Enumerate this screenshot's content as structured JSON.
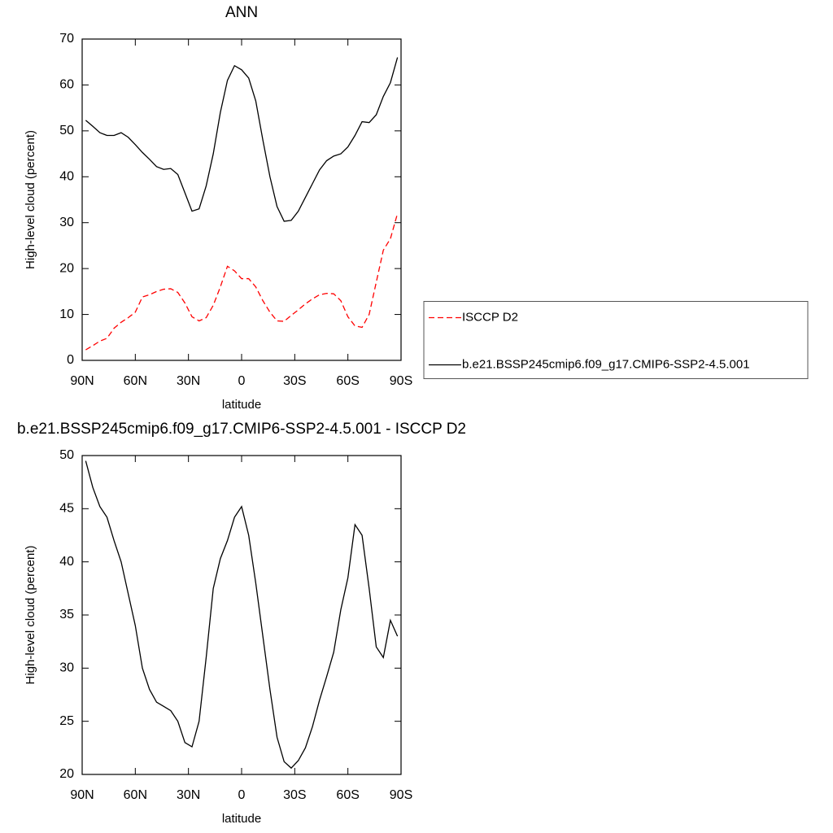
{
  "chart_data": [
    {
      "type": "line",
      "title": "ANN",
      "xlabel": "latitude",
      "ylabel": "High-level cloud (percent)",
      "x": [
        88,
        84,
        80,
        76,
        72,
        68,
        64,
        60,
        56,
        52,
        48,
        44,
        40,
        36,
        32,
        28,
        24,
        20,
        16,
        12,
        8,
        4,
        0,
        -4,
        -8,
        -12,
        -16,
        -20,
        -24,
        -28,
        -32,
        -36,
        -40,
        -44,
        -48,
        -52,
        -56,
        -60,
        -64,
        -68,
        -72,
        -76,
        -80,
        -84,
        -88
      ],
      "xlim": [
        90,
        -90
      ],
      "xticks": [
        {
          "value": 90,
          "label": "90N"
        },
        {
          "value": 60,
          "label": "60N"
        },
        {
          "value": 30,
          "label": "30N"
        },
        0,
        {
          "value": -30,
          "label": "30S"
        },
        {
          "value": -60,
          "label": "60S"
        },
        {
          "value": -90,
          "label": "90S"
        }
      ],
      "ylim": [
        0,
        70
      ],
      "yticks": [
        0,
        10,
        20,
        30,
        40,
        50,
        60,
        70
      ],
      "legend": "right",
      "series": [
        {
          "name": "ISCCP D2",
          "color": "#ff0000",
          "line_style": "dashed",
          "values": [
            2.3,
            3.2,
            4.2,
            4.8,
            7,
            8.3,
            9.3,
            10.5,
            13.8,
            14.3,
            15,
            15.5,
            15.6,
            14.8,
            12.5,
            9.5,
            8.6,
            9.3,
            12,
            16,
            20.5,
            19.5,
            17.8,
            17.8,
            16,
            13,
            10.5,
            8.6,
            8.5,
            9.8,
            11,
            12.3,
            13.4,
            14.3,
            14.6,
            14.5,
            13,
            9.5,
            7.5,
            7.2,
            10,
            17,
            24,
            26.5,
            32
          ]
        },
        {
          "name": "b.e21.BSSP245cmip6.f09_g17.CMIP6-SSP2-4.5.001",
          "color": "#000000",
          "line_style": "solid",
          "values": [
            52.3,
            51,
            49.6,
            49,
            49,
            49.6,
            48.6,
            47,
            45.3,
            43.8,
            42.2,
            41.6,
            41.8,
            40.5,
            36.5,
            32.5,
            33,
            38,
            45,
            54,
            61,
            64.2,
            63.3,
            61.5,
            56.5,
            48,
            40,
            33.5,
            30.3,
            30.5,
            32.5,
            35.5,
            38.5,
            41.5,
            43.5,
            44.5,
            45,
            46.5,
            49,
            52,
            51.8,
            53.5,
            57.5,
            60.5,
            66
          ]
        }
      ]
    },
    {
      "type": "line",
      "title": "b.e21.BSSP245cmip6.f09_g17.CMIP6-SSP2-4.5.001 - ISCCP D2",
      "xlabel": "latitude",
      "ylabel": "High-level cloud (percent)",
      "x": [
        88,
        84,
        80,
        76,
        72,
        68,
        64,
        60,
        56,
        52,
        48,
        44,
        40,
        36,
        32,
        28,
        24,
        20,
        16,
        12,
        8,
        4,
        0,
        -4,
        -8,
        -12,
        -16,
        -20,
        -24,
        -28,
        -32,
        -36,
        -40,
        -44,
        -48,
        -52,
        -56,
        -60,
        -64,
        -68,
        -72,
        -76,
        -80,
        -84,
        -88
      ],
      "xlim": [
        90,
        -90
      ],
      "xticks": [
        {
          "value": 90,
          "label": "90N"
        },
        {
          "value": 60,
          "label": "60N"
        },
        {
          "value": 30,
          "label": "30N"
        },
        0,
        {
          "value": -30,
          "label": "30S"
        },
        {
          "value": -60,
          "label": "60S"
        },
        {
          "value": -90,
          "label": "90S"
        }
      ],
      "ylim": [
        20,
        50
      ],
      "yticks": [
        20,
        25,
        30,
        35,
        40,
        45,
        50
      ],
      "series": [
        {
          "color": "#000000",
          "line_style": "solid",
          "values": [
            49.5,
            47,
            45.2,
            44.2,
            42,
            40,
            37,
            34,
            30,
            28,
            26.8,
            26.4,
            26,
            25,
            23,
            22.6,
            25,
            31,
            37.5,
            40.3,
            42,
            44.2,
            45.2,
            42.5,
            38,
            33,
            28,
            23.5,
            21.2,
            20.6,
            21.3,
            22.5,
            24.5,
            27,
            29.2,
            31.5,
            35.5,
            38.5,
            43.5,
            42.5,
            37.5,
            32,
            31,
            34.5,
            33
          ]
        }
      ]
    }
  ]
}
